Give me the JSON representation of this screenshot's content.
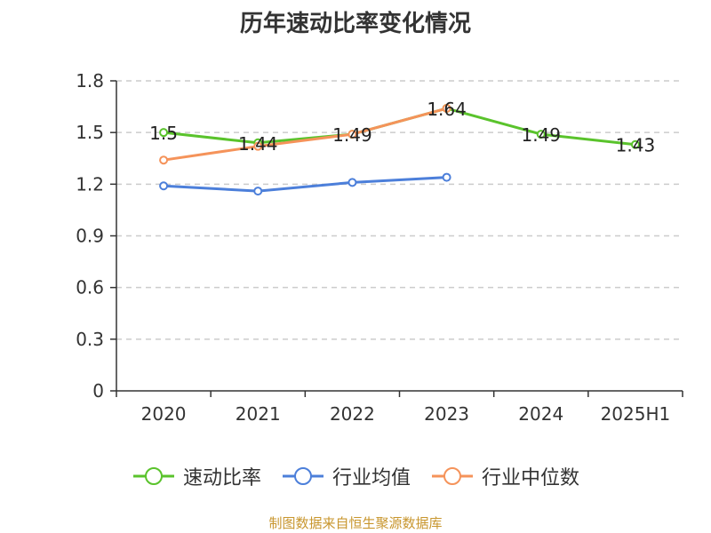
{
  "chart_data": {
    "type": "line",
    "title": "历年速动比率变化情况",
    "categories": [
      "2020",
      "2021",
      "2022",
      "2023",
      "2024",
      "2025H1"
    ],
    "ylim": [
      0,
      1.8
    ],
    "yticks": [
      "0",
      "0.3",
      "0.6",
      "0.9",
      "1.2",
      "1.5",
      "1.8"
    ],
    "grid": true,
    "legend_position": "bottom",
    "series": [
      {
        "name": "速动比率",
        "color": "#5ac32c",
        "values": [
          1.5,
          1.44,
          1.49,
          1.64,
          1.49,
          1.43
        ],
        "labels": [
          "1.5",
          "1.44",
          "1.49",
          "1.64",
          "1.49",
          "1.43"
        ]
      },
      {
        "name": "行业均值",
        "color": "#4c7fda",
        "values": [
          1.19,
          1.16,
          1.21,
          1.24,
          null,
          null
        ]
      },
      {
        "name": "行业中位数",
        "color": "#f5935a",
        "values": [
          1.34,
          1.42,
          1.49,
          1.64,
          null,
          null
        ]
      }
    ]
  },
  "source": "制图数据来自恒生聚源数据库"
}
